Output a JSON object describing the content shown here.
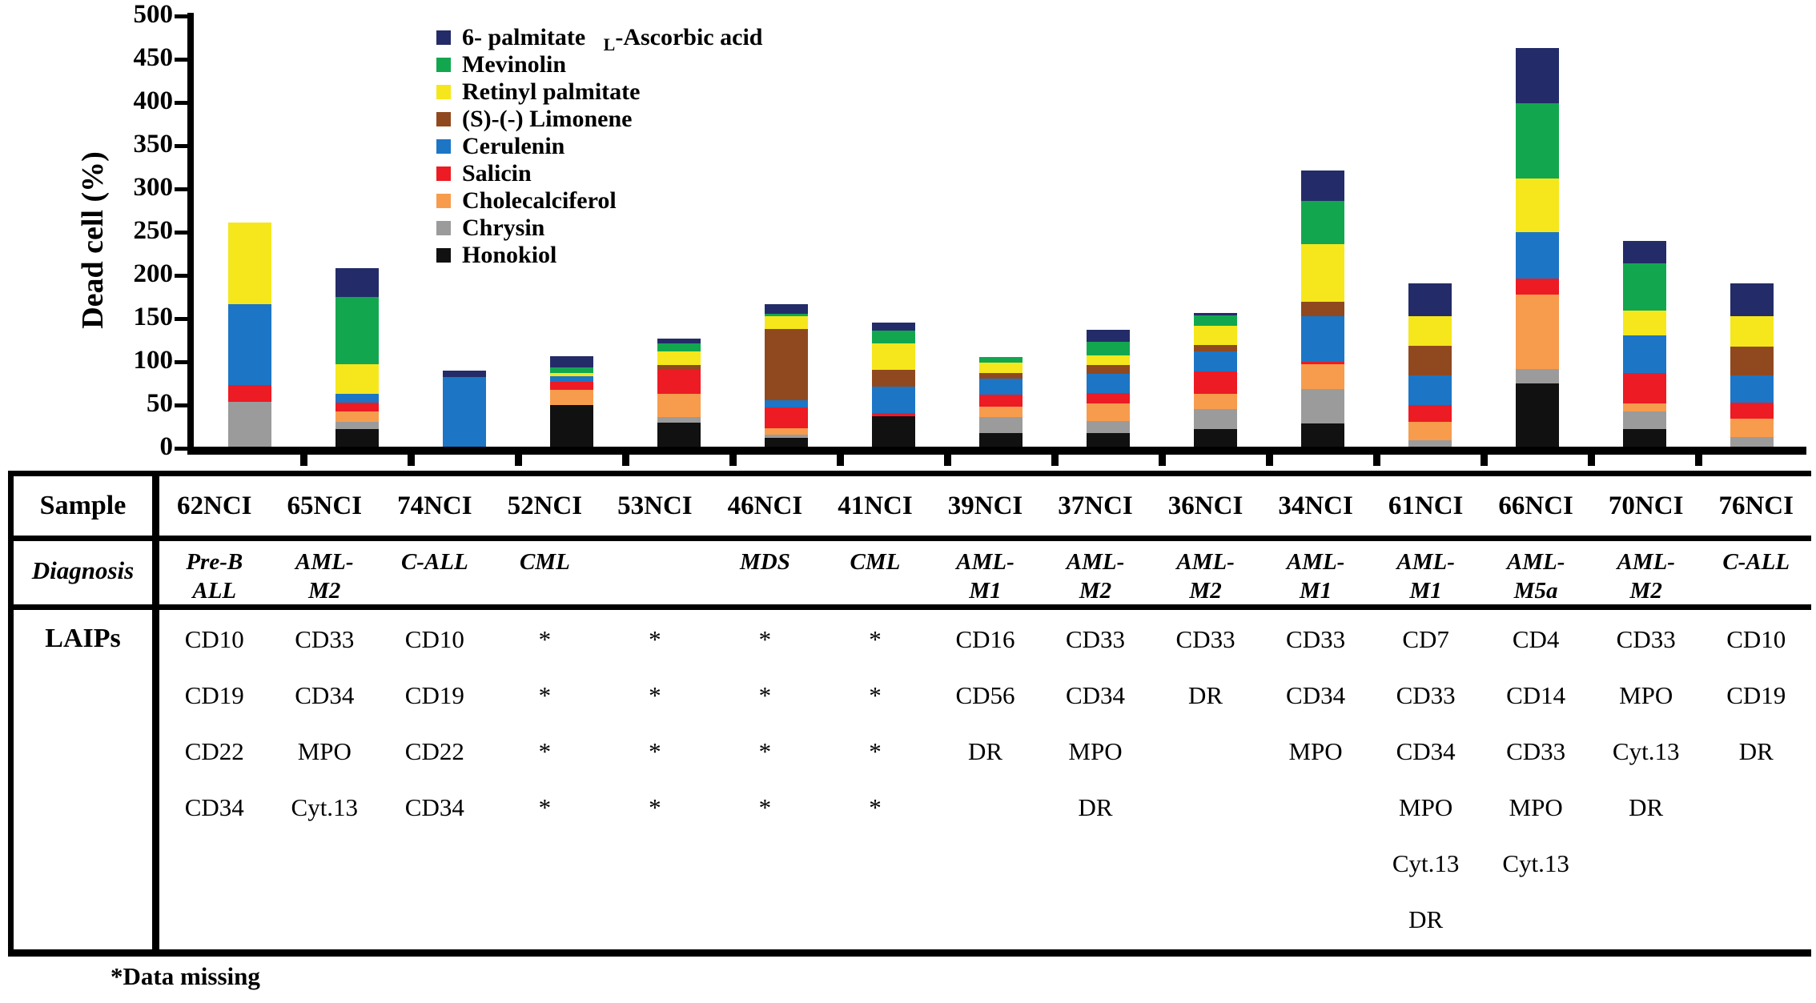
{
  "chart_data": {
    "type": "bar",
    "stacked": true,
    "title": "",
    "xlabel": "",
    "ylabel": "Dead cell (%)",
    "ylim": [
      0,
      500
    ],
    "y_tick_step": 50,
    "y_ticks": [
      500,
      450,
      400,
      350,
      300,
      250,
      200,
      150,
      100,
      50,
      0
    ],
    "grid": false,
    "legend_position": "upper-left-inside",
    "categories": [
      "62NCI",
      "65NCI",
      "74NCI",
      "52NCI",
      "53NCI",
      "46NCI",
      "41NCI",
      "39NCI",
      "37NCI",
      "36NCI",
      "34NCI",
      "61NCI",
      "66NCI",
      "70NCI",
      "76NCI"
    ],
    "series_note": "listed bottom-to-top of stack; legend shows reverse order",
    "series": [
      {
        "name": "Honokiol",
        "color": "#111111",
        "values": [
          0,
          22,
          0,
          50,
          30,
          12,
          37,
          18,
          18,
          22,
          29,
          0,
          75,
          22,
          0
        ]
      },
      {
        "name": "Chrysin",
        "color": "#9B9B9B",
        "values": [
          54,
          9,
          0,
          0,
          6,
          4,
          0,
          18,
          14,
          23,
          40,
          9,
          17,
          21,
          13
        ]
      },
      {
        "name": "Cholecalciferol",
        "color": "#F79C4D",
        "values": [
          0,
          12,
          0,
          18,
          27,
          7,
          0,
          12,
          20,
          18,
          28,
          22,
          86,
          9,
          21
        ]
      },
      {
        "name": "Salicin",
        "color": "#EC1B24",
        "values": [
          19,
          10,
          0,
          9,
          29,
          24,
          4,
          14,
          12,
          26,
          3,
          19,
          18,
          35,
          19
        ]
      },
      {
        "name": "Cerulenin",
        "color": "#1C76C5",
        "values": [
          94,
          10,
          82,
          6,
          0,
          9,
          30,
          19,
          22,
          23,
          53,
          34,
          54,
          44,
          31
        ]
      },
      {
        "name": "(S)-(-) Limonene",
        "color": "#90491F",
        "values": [
          0,
          0,
          0,
          0,
          4,
          82,
          20,
          6,
          10,
          8,
          17,
          35,
          0,
          0,
          34
        ]
      },
      {
        "name": "Retinyl palmitate",
        "color": "#F5E71C",
        "values": [
          94,
          34,
          0,
          4,
          16,
          15,
          30,
          12,
          11,
          22,
          66,
          34,
          62,
          28,
          35
        ]
      },
      {
        "name": "Mevinolin",
        "color": "#12A74F",
        "values": [
          0,
          78,
          0,
          7,
          9,
          3,
          15,
          7,
          16,
          12,
          50,
          0,
          87,
          55,
          0
        ]
      },
      {
        "name": "6- palmitate L-Ascorbic acid",
        "color": "#232C68",
        "values": [
          0,
          33,
          8,
          13,
          6,
          11,
          9,
          0,
          14,
          3,
          35,
          38,
          64,
          26,
          38
        ],
        "legend_parts": {
          "pre": "6- palmitate ",
          "sub": "L",
          "post": "-Ascorbic acid"
        }
      }
    ]
  },
  "table": {
    "row_headers": [
      "Sample",
      "Diagnosis",
      "LAIPs"
    ],
    "footnote": "*Data missing",
    "columns": [
      {
        "sample": "62NCI",
        "diagnosis_lines": [
          "Pre-B",
          "ALL"
        ],
        "laips": [
          "CD10",
          "CD19",
          "CD22",
          "CD34"
        ]
      },
      {
        "sample": "65NCI",
        "diagnosis_lines": [
          "AML-",
          "M2"
        ],
        "laips": [
          "CD33",
          "CD34",
          "MPO",
          "Cyt.13"
        ]
      },
      {
        "sample": "74NCI",
        "diagnosis_lines": [
          "C-ALL"
        ],
        "laips": [
          "CD10",
          "CD19",
          "CD22",
          "CD34"
        ]
      },
      {
        "sample": "52NCI",
        "diagnosis_lines": [
          "CML"
        ],
        "laips": [
          "*",
          "*",
          "*",
          "*"
        ]
      },
      {
        "sample": "53NCI",
        "diagnosis_lines": [],
        "laips": [
          "*",
          "*",
          "*",
          "*"
        ]
      },
      {
        "sample": "46NCI",
        "diagnosis_lines": [
          "MDS"
        ],
        "laips": [
          "*",
          "*",
          "*",
          "*"
        ]
      },
      {
        "sample": "41NCI",
        "diagnosis_lines": [
          "CML"
        ],
        "laips": [
          "*",
          "*",
          "*",
          "*"
        ]
      },
      {
        "sample": "39NCI",
        "diagnosis_lines": [
          "AML-",
          "M1"
        ],
        "laips": [
          "CD16",
          "CD56",
          "DR"
        ]
      },
      {
        "sample": "37NCI",
        "diagnosis_lines": [
          "AML-",
          "M2"
        ],
        "laips": [
          "CD33",
          "CD34",
          "MPO",
          "DR"
        ]
      },
      {
        "sample": "36NCI",
        "diagnosis_lines": [
          "AML-",
          "M2"
        ],
        "laips": [
          "CD33",
          "DR"
        ]
      },
      {
        "sample": "34NCI",
        "diagnosis_lines": [
          "AML-",
          "M1"
        ],
        "laips": [
          "CD33",
          "CD34",
          "MPO"
        ]
      },
      {
        "sample": "61NCI",
        "diagnosis_lines": [
          "AML-",
          "M1"
        ],
        "laips": [
          "CD7",
          "CD33",
          "CD34",
          "MPO",
          "Cyt.13",
          "DR"
        ]
      },
      {
        "sample": "66NCI",
        "diagnosis_lines": [
          "AML-",
          "M5a"
        ],
        "laips": [
          "CD4",
          "CD14",
          "CD33",
          "MPO",
          "Cyt.13"
        ]
      },
      {
        "sample": "70NCI",
        "diagnosis_lines": [
          "AML-",
          "M2"
        ],
        "laips": [
          "CD33",
          "MPO",
          "Cyt.13",
          "DR"
        ]
      },
      {
        "sample": "76NCI",
        "diagnosis_lines": [
          "C-ALL"
        ],
        "laips": [
          "CD10",
          "CD19",
          "DR"
        ]
      }
    ]
  }
}
